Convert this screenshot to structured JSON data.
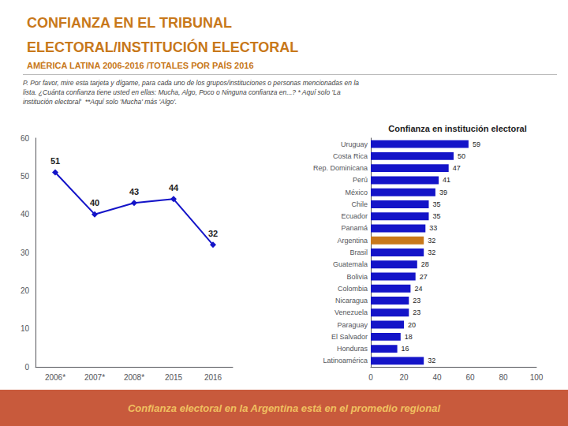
{
  "chart_data": [
    {
      "type": "line",
      "title": "CONFIANZA EN EL TRIBUNAL\nELECTORAL/INSTITUCIÓN ELECTORAL",
      "subtitle": "AMÉRICA LATINA 2006-2016 /TOTALES POR PAÍS 2016",
      "annotations": [
        "P. Por favor, mire esta tarjeta y dígame, para cada uno de los grupos/instituciones o personas mencionadas en la\nlista. ¿Cuánta confianza tiene usted en ellas: Mucha, Algo, Poco o Ninguna confianza en...? * Aquí solo 'La\ninstitución electoral'  **Aquí solo 'Mucha' más 'Algo'.",
        "Confianza electoral en la Argentina está en el promedio regional"
      ],
      "categories": [
        "2006*",
        "2007*",
        "2008*",
        "2015",
        "2016"
      ],
      "values": [
        51,
        40,
        43,
        44,
        32
      ],
      "color": "#1414C8",
      "marker": "diamond",
      "ylim": [
        0,
        60
      ],
      "yticks": [
        0,
        10,
        20,
        30,
        40,
        50,
        60
      ],
      "data_labels": true,
      "grid": false
    },
    {
      "type": "bar",
      "title": "Confianza en institución electoral",
      "orientation": "horizontal",
      "categories": [
        "Uruguay",
        "Costa Rica",
        "Rep. Dominicana",
        "Perú",
        "México",
        "Chile",
        "Ecuador",
        "Panamá",
        "Argentina",
        "Brasil",
        "Guatemala",
        "Bolivia",
        "Colombia",
        "Nicaragua",
        "Venezuela",
        "Paraguay",
        "El Salvador",
        "Honduras",
        "Latinoamérica"
      ],
      "values": [
        59,
        50,
        47,
        41,
        39,
        35,
        35,
        33,
        32,
        32,
        28,
        27,
        24,
        23,
        23,
        20,
        18,
        16,
        32
      ],
      "colors": [
        "#1414C8",
        "#1414C8",
        "#1414C8",
        "#1414C8",
        "#1414C8",
        "#1414C8",
        "#1414C8",
        "#1414C8",
        "#C8781A",
        "#1414C8",
        "#1414C8",
        "#1414C8",
        "#1414C8",
        "#1414C8",
        "#1414C8",
        "#1414C8",
        "#1414C8",
        "#1414C8",
        "#1414C8"
      ],
      "xlim": [
        0,
        100
      ],
      "xticks": [
        0,
        20,
        40,
        60,
        80,
        100
      ],
      "data_labels": true,
      "grid": false
    }
  ]
}
